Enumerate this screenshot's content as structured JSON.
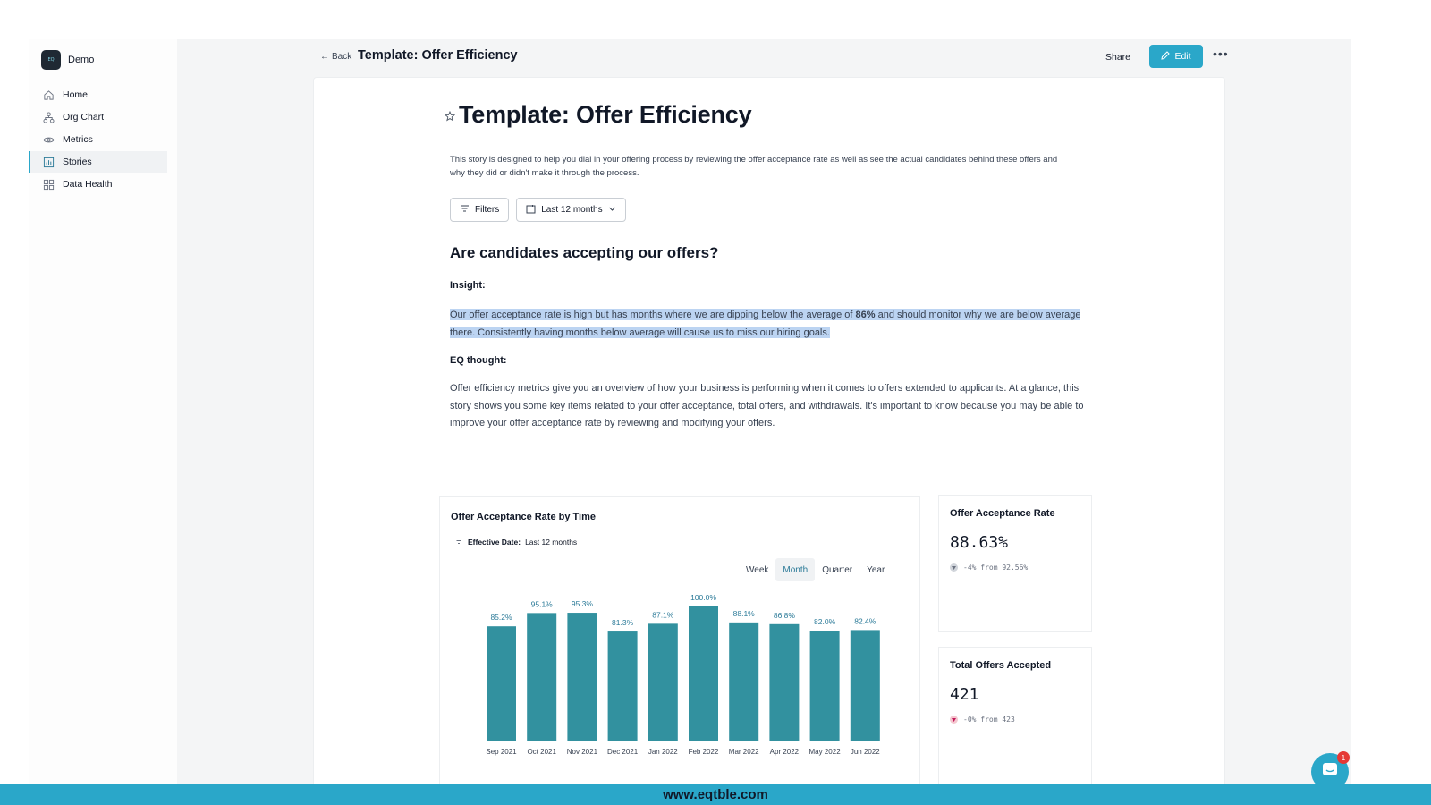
{
  "sidebar": {
    "brand": {
      "logo_text": "EQ",
      "name": "Demo"
    },
    "items": [
      {
        "label": "Home",
        "icon": "home-icon",
        "active": false
      },
      {
        "label": "Org Chart",
        "icon": "org-chart-icon",
        "active": false
      },
      {
        "label": "Metrics",
        "icon": "eye-icon",
        "active": false
      },
      {
        "label": "Stories",
        "icon": "bar-chart-icon",
        "active": true
      },
      {
        "label": "Data Health",
        "icon": "grid-icon",
        "active": false
      }
    ]
  },
  "topbar": {
    "back_label": "Back",
    "title": "Template: Offer Efficiency",
    "share_label": "Share",
    "edit_label": "Edit",
    "more_label": "•••"
  },
  "story": {
    "title": "Template: Offer Efficiency",
    "description": "This story is designed to help you dial in your offering process by reviewing the offer acceptance rate as well as see the actual candidates behind these offers and why they did or didn't make it through the process.",
    "filters_label": "Filters",
    "date_range_label": "Last 12 months",
    "section_heading": "Are candidates accepting our offers?",
    "insight_label": "Insight:",
    "insight_part1": "Our offer acceptance rate is high but has months where we are dipping below the average of ",
    "insight_bold": "86%",
    "insight_part2": " and should monitor why we are below average there. Consistently having months below average will cause us to miss our hiring goals.",
    "eq_label": "EQ thought:",
    "eq_text": "Offer efficiency metrics give you an overview of how your business is performing when it comes to offers extended to applicants. At a glance, this story shows you some key items related to your offer acceptance, total offers, and withdrawals. It's important to know because you may be able to improve your offer acceptance rate by reviewing and modifying your offers."
  },
  "chart_panel": {
    "title": "Offer Acceptance Rate by Time",
    "effective_date_label": "Effective Date:",
    "effective_date_value": "Last 12 months",
    "tabs": [
      "Week",
      "Month",
      "Quarter",
      "Year"
    ],
    "active_tab": "Month"
  },
  "chart_data": {
    "type": "bar",
    "categories": [
      "Sep 2021",
      "Oct 2021",
      "Nov 2021",
      "Dec 2021",
      "Jan 2022",
      "Feb 2022",
      "Mar 2022",
      "Apr 2022",
      "May 2022",
      "Jun 2022"
    ],
    "values": [
      85.2,
      95.1,
      95.3,
      81.3,
      87.1,
      100.0,
      88.1,
      86.8,
      82.0,
      82.4
    ],
    "data_labels": [
      "85.2%",
      "95.1%",
      "95.3%",
      "81.3%",
      "87.1%",
      "100.0%",
      "88.1%",
      "86.8%",
      "82.0%",
      "82.4%"
    ],
    "ylim": [
      0,
      100
    ],
    "grid": false,
    "bar_color": "#32919f",
    "label_color": "#2b7a98"
  },
  "kpis": [
    {
      "title": "Offer Acceptance Rate",
      "value": "88.63%",
      "delta": "-4% from 92.56%"
    },
    {
      "title": "Total Offers Accepted",
      "value": "421",
      "delta": "-0% from 423"
    }
  ],
  "chat": {
    "badge": "1"
  },
  "footer": {
    "text": "www.eqtble.com"
  },
  "colors": {
    "accent": "#2aa7c9",
    "highlight": "#bcd4f2"
  }
}
